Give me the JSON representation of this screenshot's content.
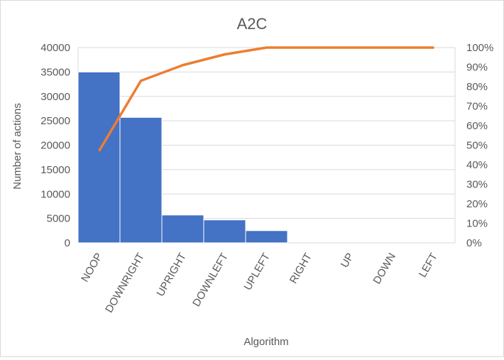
{
  "colors": {
    "bar": "#4472c4",
    "line": "#ed7d31"
  },
  "chart_data": {
    "type": "bar",
    "title": "A2C",
    "xlabel": "Algorithm",
    "ylabel": "Number of actions",
    "categories": [
      "NOOP",
      "DOWNRIGHT",
      "UPRIGHT",
      "DOWNLEFT",
      "UPLEFT",
      "RIGHT",
      "UP",
      "DOWN",
      "LEFT"
    ],
    "ylim": [
      0,
      40000
    ],
    "yticks": [
      "0",
      "5000",
      "10000",
      "15000",
      "20000",
      "25000",
      "30000",
      "35000",
      "40000"
    ],
    "y2lim": [
      0,
      1
    ],
    "y2ticks": [
      "0%",
      "10%",
      "20%",
      "30%",
      "40%",
      "50%",
      "60%",
      "70%",
      "80%",
      "90%",
      "100%"
    ],
    "grid": true,
    "series": [
      {
        "type": "bar",
        "values": [
          35000,
          25700,
          5700,
          4700,
          2500,
          0,
          0,
          0,
          0
        ]
      },
      {
        "type": "line",
        "axis": "secondary",
        "values": [
          0.47,
          0.83,
          0.91,
          0.965,
          1.0,
          1.0,
          1.0,
          1.0,
          1.0
        ]
      }
    ]
  }
}
